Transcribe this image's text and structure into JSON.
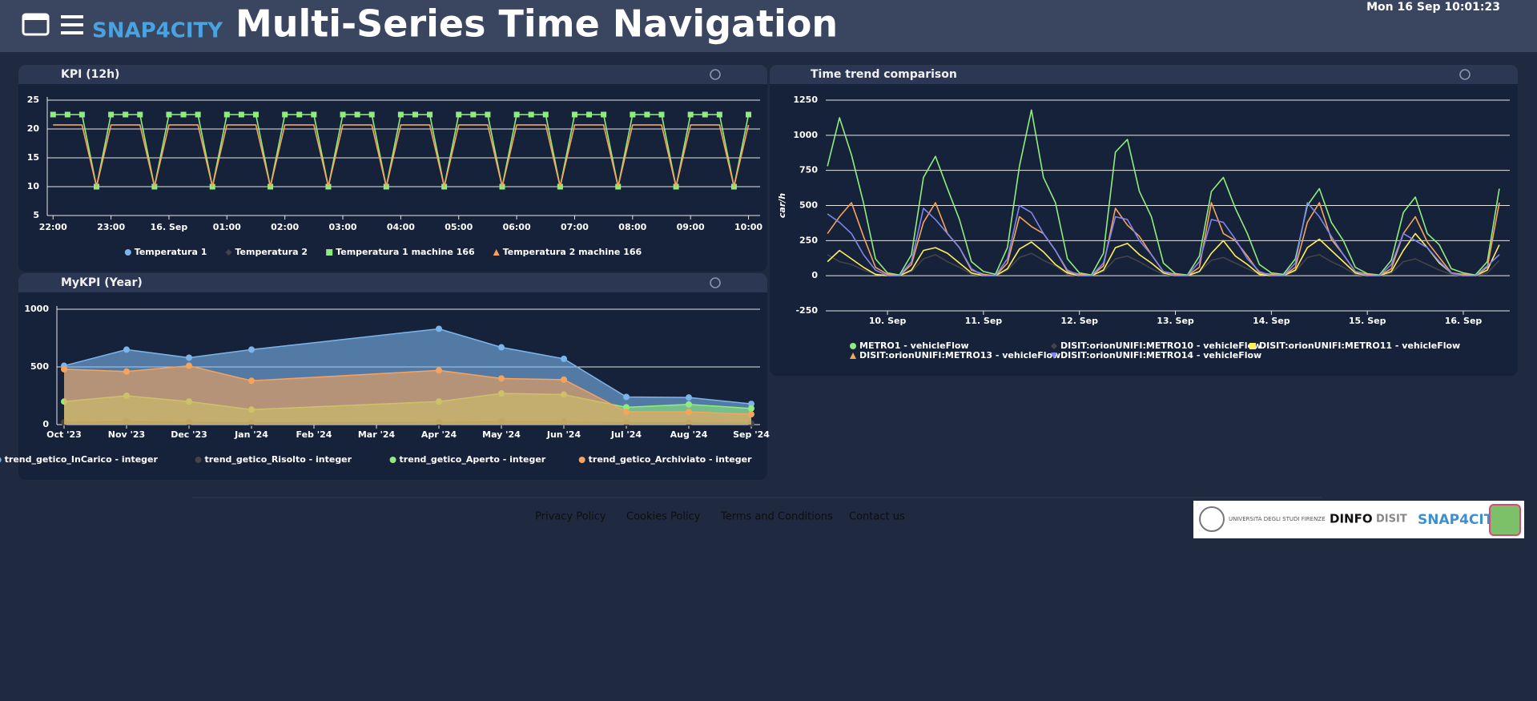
{
  "header": {
    "logo": "SNAP4CITY",
    "title": "Multi-Series Time Navigation",
    "datetime": "Mon 16 Sep 10:01:23"
  },
  "footer": {
    "links": [
      "Privacy Policy",
      "Cookies Policy",
      "Terms and Conditions",
      "Contact us"
    ],
    "logos": [
      "UNIVERSITÀ DEGLI STUDI FIRENZE",
      "DINFO",
      "DISIT",
      "SNAP4CITY"
    ]
  },
  "chart_data": [
    {
      "type": "line",
      "title": "KPI (12h)",
      "grid": true,
      "markers": true,
      "ylim": [
        5,
        25
      ],
      "yticks": [
        5,
        10,
        15,
        20,
        25
      ],
      "xlim": [
        21.9,
        34.2
      ],
      "xticks": [
        {
          "value": 22,
          "label": "22:00"
        },
        {
          "value": 23,
          "label": "23:00"
        },
        {
          "value": 24,
          "label": "16. Sep"
        },
        {
          "value": 25,
          "label": "01:00"
        },
        {
          "value": 26,
          "label": "02:00"
        },
        {
          "value": 27,
          "label": "03:00"
        },
        {
          "value": 28,
          "label": "04:00"
        },
        {
          "value": 29,
          "label": "05:00"
        },
        {
          "value": 30,
          "label": "06:00"
        },
        {
          "value": 31,
          "label": "07:00"
        },
        {
          "value": 32,
          "label": "08:00"
        },
        {
          "value": 33,
          "label": "09:00"
        },
        {
          "value": 34,
          "label": "10:00"
        }
      ],
      "x": [
        22,
        22.25,
        22.5,
        22.75,
        23,
        23.25,
        23.5,
        23.75,
        24,
        24.25,
        24.5,
        24.75,
        25,
        25.25,
        25.5,
        25.75,
        26,
        26.25,
        26.5,
        26.75,
        27,
        27.25,
        27.5,
        27.75,
        28,
        28.25,
        28.5,
        28.75,
        29,
        29.25,
        29.5,
        29.75,
        30,
        30.25,
        30.5,
        30.75,
        31,
        31.25,
        31.5,
        31.75,
        32,
        32.25,
        32.5,
        32.75,
        33,
        33.25,
        33.5,
        33.75,
        34
      ],
      "series": [
        {
          "name": "Temperatura 1",
          "color": "#7cb5ec",
          "marker": "circle",
          "values": [
            null,
            null,
            null,
            null,
            null,
            null,
            null,
            null,
            null,
            null,
            null,
            null,
            null,
            null,
            null,
            null,
            null,
            null,
            null,
            null,
            null,
            null,
            null,
            null,
            null,
            null,
            null,
            null,
            null,
            null,
            null,
            null,
            null,
            null,
            null,
            null,
            null,
            null,
            null,
            null,
            null,
            null,
            null,
            null,
            null,
            null,
            null,
            null,
            null
          ]
        },
        {
          "name": "Temperatura 2",
          "color": "#434348",
          "marker": "diamond",
          "values": [
            null,
            null,
            null,
            null,
            null,
            null,
            null,
            null,
            null,
            null,
            null,
            null,
            null,
            null,
            null,
            null,
            null,
            null,
            null,
            null,
            null,
            null,
            null,
            null,
            null,
            null,
            null,
            null,
            null,
            null,
            null,
            null,
            null,
            null,
            null,
            null,
            null,
            null,
            null,
            null,
            null,
            null,
            null,
            null,
            null,
            null,
            null,
            null,
            null
          ]
        },
        {
          "name": "Temperatura 1 machine 166",
          "color": "#90ed7d",
          "marker": "square",
          "values": [
            22.5,
            22.5,
            22.5,
            10,
            22.5,
            22.5,
            22.5,
            10,
            22.5,
            22.5,
            22.5,
            10,
            22.5,
            22.5,
            22.5,
            10,
            22.5,
            22.5,
            22.5,
            10,
            22.5,
            22.5,
            22.5,
            10,
            22.5,
            22.5,
            22.5,
            10,
            22.5,
            22.5,
            22.5,
            10,
            22.5,
            22.5,
            22.5,
            10,
            22.5,
            22.5,
            22.5,
            10,
            22.5,
            22.5,
            22.5,
            10,
            22.5,
            22.5,
            22.5,
            10,
            22.5
          ]
        },
        {
          "name": "Temperatura 2 machine 166",
          "color": "#f7a35c",
          "marker": "triangle",
          "markers": false,
          "values": [
            20.7,
            20.7,
            20.7,
            10,
            20.7,
            20.7,
            20.7,
            10,
            20.7,
            20.7,
            20.7,
            10,
            20.7,
            20.7,
            20.7,
            10,
            20.7,
            20.7,
            20.7,
            10,
            20.7,
            20.7,
            20.7,
            10,
            20.7,
            20.7,
            20.7,
            10,
            20.7,
            20.7,
            20.7,
            10,
            20.7,
            20.7,
            20.7,
            10,
            20.7,
            20.7,
            20.7,
            10,
            20.7,
            20.7,
            20.7,
            10,
            20.7,
            20.7,
            20.7,
            10,
            20.7
          ]
        }
      ]
    },
    {
      "type": "area",
      "title": "MyKPI (Year)",
      "grid": true,
      "markers": true,
      "ylim": [
        0,
        1000
      ],
      "yticks": [
        0,
        500,
        1000
      ],
      "xlim": [
        "2023-10",
        "2024-09"
      ],
      "xticks": [
        {
          "value": "2023-10",
          "label": "Oct '23"
        },
        {
          "value": "2023-11",
          "label": "Nov '23"
        },
        {
          "value": "2023-12",
          "label": "Dec '23"
        },
        {
          "value": "2024-01",
          "label": "Jan '24"
        },
        {
          "value": "2024-02",
          "label": "Feb '24"
        },
        {
          "value": "2024-03",
          "label": "Mar '24"
        },
        {
          "value": "2024-04",
          "label": "Apr '24"
        },
        {
          "value": "2024-05",
          "label": "May '24"
        },
        {
          "value": "2024-06",
          "label": "Jun '24"
        },
        {
          "value": "2024-07",
          "label": "Jul '24"
        },
        {
          "value": "2024-08",
          "label": "Aug '24"
        },
        {
          "value": "2024-09",
          "label": "Sep '24"
        }
      ],
      "x": [
        "2023-10",
        "2023-11",
        "2023-12",
        "2024-01",
        "2024-04",
        "2024-05",
        "2024-06",
        "2024-07",
        "2024-08",
        "2024-09"
      ],
      "series": [
        {
          "name": "trend_getico_InCarico - integer",
          "color": "#7cb5ec",
          "marker": "circle",
          "values": [
            510,
            650,
            580,
            650,
            830,
            670,
            570,
            240,
            235,
            180
          ]
        },
        {
          "name": "trend_getico_Risolto - integer",
          "color": "#434348",
          "marker": "circle",
          "values": [
            20,
            25,
            20,
            15,
            20,
            25,
            25,
            15,
            15,
            10
          ]
        },
        {
          "name": "trend_getico_Aperto - integer",
          "color": "#90ed7d",
          "marker": "circle",
          "values": [
            200,
            250,
            200,
            130,
            200,
            270,
            260,
            150,
            175,
            140
          ]
        },
        {
          "name": "trend_getico_Archiviato - integer",
          "color": "#f7a35c",
          "marker": "circle",
          "values": [
            480,
            460,
            510,
            380,
            470,
            400,
            390,
            110,
            110,
            90
          ]
        }
      ]
    },
    {
      "type": "line",
      "title": "Time trend comparison",
      "ylabel": "car/h",
      "grid": true,
      "markers": false,
      "ylim": [
        -250,
        1250
      ],
      "yticks": [
        -250,
        0,
        250,
        500,
        750,
        1000,
        1250
      ],
      "xlim": [
        9.357,
        16.484
      ],
      "xticks": [
        {
          "value": 10,
          "label": "10. Sep"
        },
        {
          "value": 11,
          "label": "11. Sep"
        },
        {
          "value": 12,
          "label": "12. Sep"
        },
        {
          "value": 13,
          "label": "13. Sep"
        },
        {
          "value": 14,
          "label": "14. Sep"
        },
        {
          "value": 15,
          "label": "15. Sep"
        },
        {
          "value": 16,
          "label": "16. Sep"
        }
      ],
      "x": [
        9.375,
        9.5,
        9.625,
        9.75,
        9.875,
        10,
        10.125,
        10.25,
        10.375,
        10.5,
        10.625,
        10.75,
        10.875,
        11,
        11.125,
        11.25,
        11.375,
        11.5,
        11.625,
        11.75,
        11.875,
        12,
        12.125,
        12.25,
        12.375,
        12.5,
        12.625,
        12.75,
        12.875,
        13,
        13.125,
        13.25,
        13.375,
        13.5,
        13.625,
        13.75,
        13.875,
        14,
        14.125,
        14.25,
        14.375,
        14.5,
        14.625,
        14.75,
        14.875,
        15,
        15.125,
        15.25,
        15.375,
        15.5,
        15.625,
        15.75,
        15.875,
        16,
        16.125,
        16.25,
        16.375
      ],
      "series": [
        {
          "name": "METRO1 - vehicleFlow",
          "color": "#90ed7d",
          "marker": "circle",
          "values": [
            780,
            1125,
            860,
            520,
            120,
            20,
            5,
            150,
            700,
            850,
            620,
            400,
            100,
            30,
            10,
            200,
            780,
            1180,
            700,
            520,
            120,
            20,
            5,
            160,
            880,
            970,
            600,
            420,
            90,
            15,
            5,
            140,
            600,
            700,
            480,
            300,
            80,
            20,
            10,
            120,
            500,
            620,
            380,
            250,
            60,
            15,
            5,
            110,
            450,
            560,
            300,
            220,
            50,
            20,
            5,
            100,
            620
          ]
        },
        {
          "name": "DISIT:orionUNIFI:METRO10 - vehicleFlow",
          "color": "#434348",
          "marker": "diamond",
          "values": [
            150,
            100,
            80,
            40,
            10,
            0,
            0,
            30,
            120,
            150,
            100,
            60,
            10,
            0,
            0,
            40,
            130,
            160,
            110,
            70,
            10,
            0,
            0,
            30,
            120,
            140,
            100,
            50,
            10,
            0,
            0,
            30,
            110,
            130,
            90,
            50,
            10,
            0,
            0,
            30,
            130,
            150,
            100,
            60,
            10,
            0,
            0,
            20,
            100,
            120,
            80,
            40,
            10,
            0,
            0,
            20,
            110
          ]
        },
        {
          "name": "DISIT:orionUNIFI:METRO11 - vehicleFlow",
          "color": "#ffef5c",
          "marker": "square",
          "values": [
            100,
            180,
            120,
            60,
            10,
            0,
            0,
            40,
            180,
            200,
            160,
            90,
            20,
            0,
            0,
            50,
            190,
            240,
            170,
            80,
            20,
            0,
            0,
            40,
            200,
            230,
            150,
            90,
            20,
            0,
            0,
            30,
            160,
            250,
            140,
            80,
            10,
            0,
            0,
            40,
            200,
            260,
            180,
            100,
            20,
            0,
            0,
            30,
            180,
            300,
            200,
            90,
            20,
            0,
            0,
            40,
            220
          ]
        },
        {
          "name": "DISIT:orionUNIFI:METRO13 - vehicleFlow",
          "color": "#f7a35c",
          "marker": "triangle",
          "values": [
            300,
            420,
            520,
            280,
            60,
            10,
            0,
            80,
            380,
            520,
            300,
            200,
            40,
            10,
            0,
            90,
            420,
            350,
            300,
            180,
            30,
            10,
            0,
            70,
            480,
            360,
            280,
            150,
            30,
            10,
            0,
            60,
            520,
            300,
            250,
            140,
            20,
            10,
            0,
            60,
            380,
            520,
            260,
            150,
            30,
            10,
            0,
            50,
            300,
            420,
            240,
            130,
            20,
            10,
            0,
            60,
            520
          ]
        },
        {
          "name": "DISIT:orionUNIFI:METRO14 - vehicleFlow",
          "color": "#8085e9",
          "marker": "triangle-down",
          "values": [
            440,
            380,
            300,
            150,
            40,
            0,
            0,
            100,
            480,
            400,
            300,
            200,
            50,
            0,
            0,
            120,
            500,
            450,
            300,
            180,
            40,
            0,
            0,
            90,
            420,
            400,
            250,
            150,
            30,
            0,
            0,
            100,
            400,
            380,
            260,
            120,
            30,
            0,
            0,
            90,
            520,
            420,
            280,
            150,
            30,
            0,
            0,
            80,
            300,
            250,
            200,
            100,
            20,
            0,
            0,
            70,
            150
          ]
        }
      ]
    }
  ]
}
